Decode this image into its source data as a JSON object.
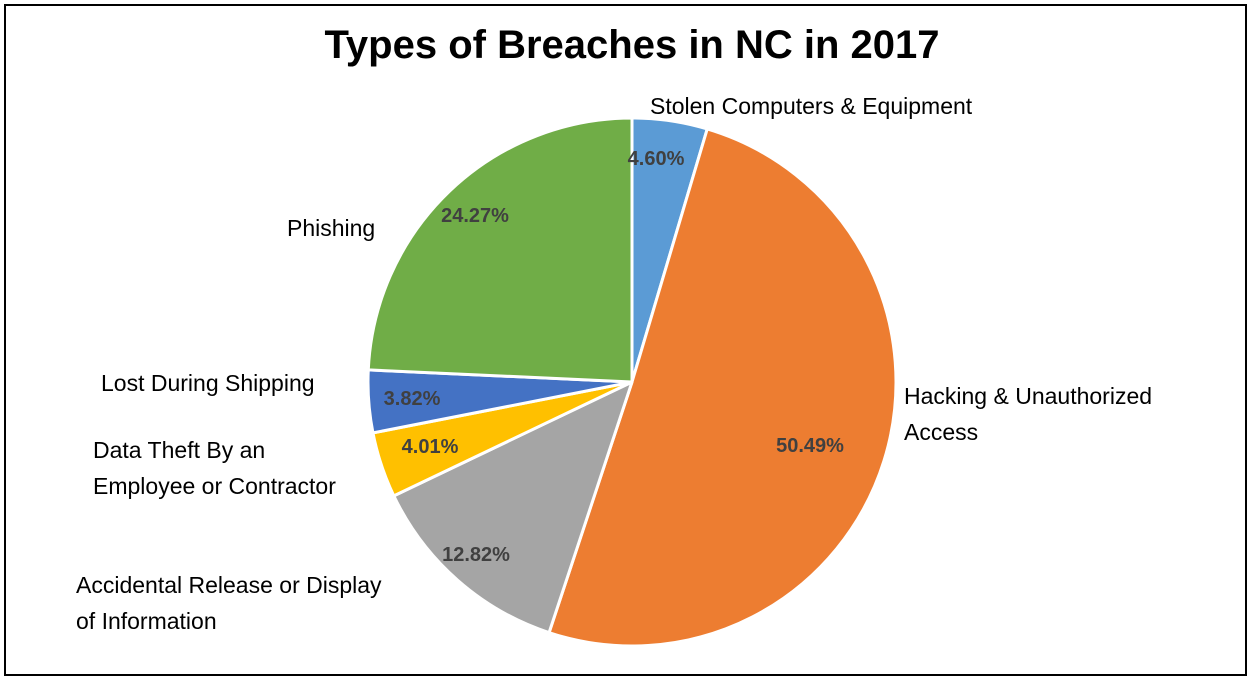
{
  "chart_data": {
    "type": "pie",
    "title": "Types of Breaches in NC in 2017",
    "start_angle_deg": 0,
    "direction": "clockwise",
    "legend": "none",
    "categories": [
      "Stolen Computers & Equipment",
      "Hacking & Unauthorized Access",
      "Accidental Release or Display of Information",
      "Data Theft By an Employee or Contractor",
      "Lost During Shipping",
      "Phishing"
    ],
    "values": [
      4.6,
      50.49,
      12.82,
      4.01,
      3.82,
      24.27
    ],
    "value_labels": [
      "4.60%",
      "50.49%",
      "12.82%",
      "4.01%",
      "3.82%",
      "24.27%"
    ],
    "category_label_lines": [
      [
        "Stolen Computers & Equipment"
      ],
      [
        "Hacking & Unauthorized",
        "Access"
      ],
      [
        "Accidental Release or Display",
        "of Information"
      ],
      [
        "Data Theft By an",
        "Employee or Contractor"
      ],
      [
        "Lost During Shipping"
      ],
      [
        "Phishing"
      ]
    ],
    "colors": [
      "#5B9BD5",
      "#ED7D31",
      "#A5A5A5",
      "#FFC000",
      "#4472C4",
      "#70AD47"
    ]
  }
}
